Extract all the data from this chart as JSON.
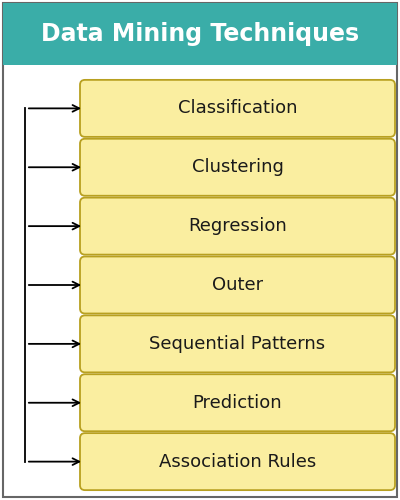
{
  "title": "Data Mining Techniques",
  "title_bg_color": "#3aada8",
  "title_text_color": "#ffffff",
  "box_bg_color": "#faeea0",
  "box_edge_color": "#b8a020",
  "box_text_color": "#1a1a1a",
  "bg_color": "#ffffff",
  "border_color": "#666666",
  "items": [
    "Classification",
    "Clustering",
    "Regression",
    "Outer",
    "Sequential Patterns",
    "Prediction",
    "Association Rules"
  ],
  "fig_width": 4.0,
  "fig_height": 5.0,
  "dpi": 100,
  "title_fontsize": 17,
  "item_fontsize": 13
}
